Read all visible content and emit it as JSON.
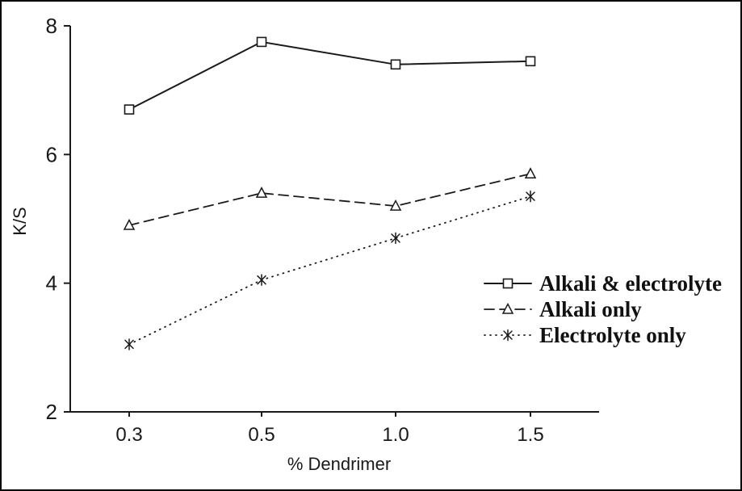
{
  "figure": {
    "background": "#ffffff",
    "frame_color": "#000000",
    "ink_color": "#1a1a1a"
  },
  "chart_data": {
    "type": "line",
    "title": "",
    "xlabel": "% Dendrimer",
    "ylabel": "K/S",
    "categories": [
      "0.3",
      "0.5",
      "1.0",
      "1.5"
    ],
    "ylim": [
      2,
      8
    ],
    "yticks": [
      2,
      4,
      6,
      8
    ],
    "grid": false,
    "legend_position": "right-middle",
    "series": [
      {
        "name": "Alkali & electrolyte",
        "values": [
          6.7,
          7.75,
          7.4,
          7.45
        ],
        "line_style": "solid",
        "marker": "square"
      },
      {
        "name": "Alkali only",
        "values": [
          4.9,
          5.4,
          5.2,
          5.7
        ],
        "line_style": "dashed",
        "marker": "triangle"
      },
      {
        "name": "Electrolyte only",
        "values": [
          3.05,
          4.05,
          4.7,
          5.35
        ],
        "line_style": "dotted",
        "marker": "star"
      }
    ]
  }
}
